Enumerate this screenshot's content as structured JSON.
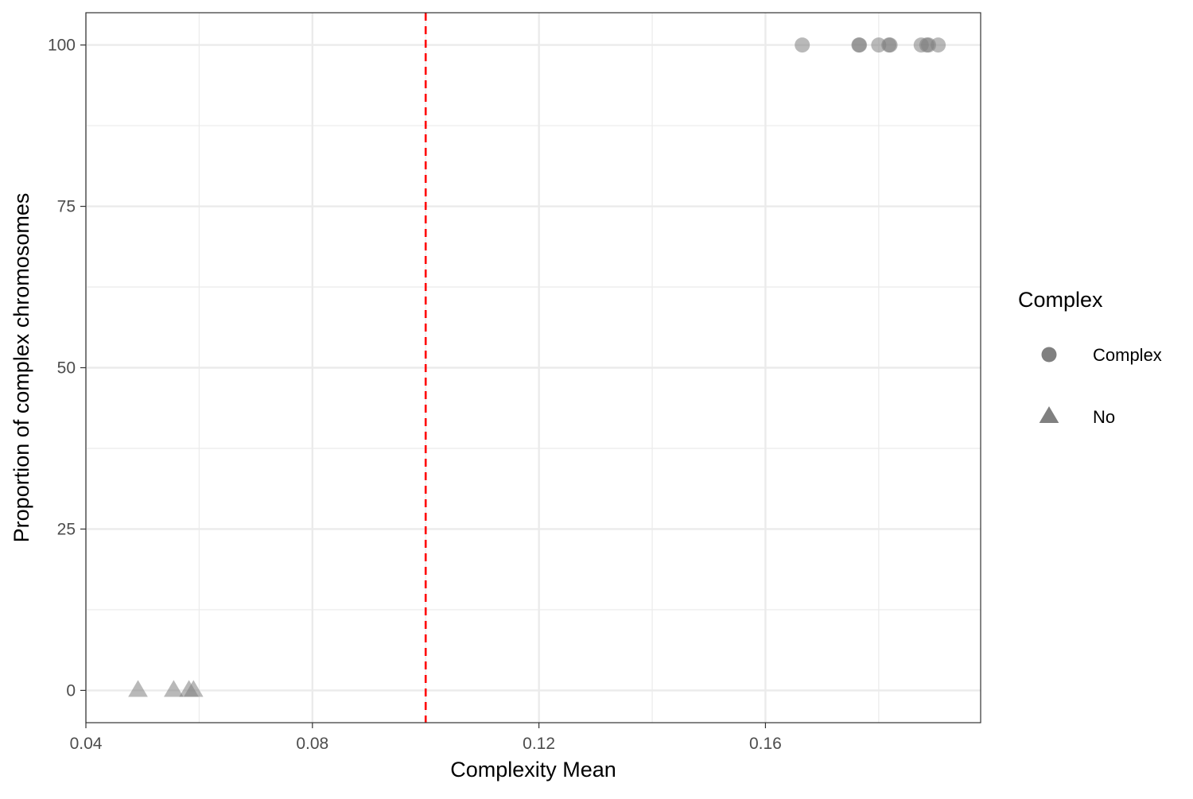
{
  "chart_data": {
    "type": "scatter",
    "title": "",
    "xlabel": "Complexity Mean",
    "ylabel": "Proportion of complex chromosomes",
    "xlim": [
      0.04,
      0.198
    ],
    "ylim": [
      -5,
      105
    ],
    "x_ticks": [
      {
        "value": 0.04,
        "label": "0.04"
      },
      {
        "value": 0.08,
        "label": "0.08"
      },
      {
        "value": 0.12,
        "label": "0.12"
      },
      {
        "value": 0.16,
        "label": "0.16"
      }
    ],
    "x_minor_ticks": [
      0.06,
      0.1,
      0.14,
      0.18
    ],
    "y_ticks": [
      {
        "value": 0,
        "label": "0"
      },
      {
        "value": 25,
        "label": "25"
      },
      {
        "value": 50,
        "label": "50"
      },
      {
        "value": 75,
        "label": "75"
      },
      {
        "value": 100,
        "label": "100"
      }
    ],
    "y_minor_ticks": [
      12.5,
      37.5,
      62.5,
      87.5
    ],
    "grid": true,
    "reference_line": {
      "axis": "x",
      "value": 0.1,
      "color": "#FF0000",
      "style": "dashed"
    },
    "point_color": "#808080",
    "point_alpha": 0.55,
    "series": [
      {
        "name": "Complex",
        "shape": "circle",
        "points": [
          {
            "x": 0.1665,
            "y": 100
          },
          {
            "x": 0.1765,
            "y": 100
          },
          {
            "x": 0.1766,
            "y": 100
          },
          {
            "x": 0.18,
            "y": 100
          },
          {
            "x": 0.1818,
            "y": 100
          },
          {
            "x": 0.182,
            "y": 100
          },
          {
            "x": 0.1875,
            "y": 100
          },
          {
            "x": 0.1885,
            "y": 100
          },
          {
            "x": 0.1888,
            "y": 100
          },
          {
            "x": 0.1905,
            "y": 100
          }
        ]
      },
      {
        "name": "No",
        "shape": "triangle",
        "points": [
          {
            "x": 0.0492,
            "y": 0
          },
          {
            "x": 0.0555,
            "y": 0
          },
          {
            "x": 0.0582,
            "y": 0
          },
          {
            "x": 0.059,
            "y": 0
          }
        ]
      }
    ],
    "legend": {
      "title": "Complex",
      "position": "right",
      "entries": [
        {
          "label": "Complex",
          "shape": "circle"
        },
        {
          "label": "No",
          "shape": "triangle"
        }
      ]
    }
  }
}
